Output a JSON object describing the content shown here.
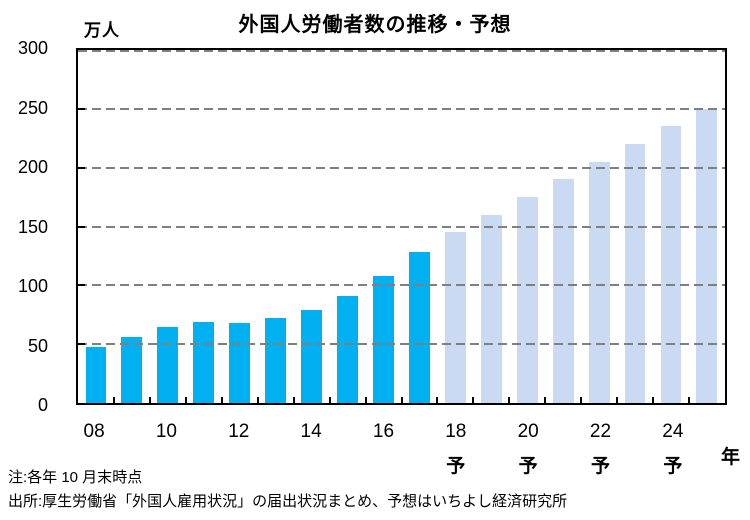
{
  "title": "外国人労働者数の推移・予想",
  "unit_label": "万人",
  "year_axis_label": "年",
  "notes": {
    "asof": "注:各年 10 月末時点",
    "source": "出所:厚生労働省「外国人雇用状況」の届出状況まとめ、予想はいちよし経済研究所"
  },
  "colors": {
    "actual_bar": "#00B0F0",
    "forecast_bar": "#C9DAF2",
    "gridline": "#7f7f7f"
  },
  "chart_data": {
    "type": "bar",
    "title": "外国人労働者数の推移・予想",
    "ylabel": "万人",
    "xlabel": "年",
    "ylim": [
      0,
      300
    ],
    "ytick_interval": 50,
    "ytick_labels": [
      "0",
      "50",
      "100",
      "150",
      "200",
      "250",
      "300"
    ],
    "grid": "horizontal-dashed",
    "legend": "none",
    "forecast_mark": "予",
    "bars": [
      {
        "year": "2008",
        "label": "08",
        "value": 48,
        "forecast": false
      },
      {
        "year": "2009",
        "label": "",
        "value": 56,
        "forecast": false
      },
      {
        "year": "2010",
        "label": "10",
        "value": 65,
        "forecast": false
      },
      {
        "year": "2011",
        "label": "",
        "value": 69,
        "forecast": false
      },
      {
        "year": "2012",
        "label": "12",
        "value": 68,
        "forecast": false
      },
      {
        "year": "2013",
        "label": "",
        "value": 72,
        "forecast": false
      },
      {
        "year": "2014",
        "label": "14",
        "value": 79,
        "forecast": false
      },
      {
        "year": "2015",
        "label": "",
        "value": 91,
        "forecast": false
      },
      {
        "year": "2016",
        "label": "16",
        "value": 108,
        "forecast": false
      },
      {
        "year": "2017",
        "label": "",
        "value": 128,
        "forecast": false
      },
      {
        "year": "2018",
        "label": "18",
        "value": 145,
        "forecast": true,
        "mark": "予"
      },
      {
        "year": "2019",
        "label": "",
        "value": 160,
        "forecast": true
      },
      {
        "year": "2020",
        "label": "20",
        "value": 175,
        "forecast": true,
        "mark": "予"
      },
      {
        "year": "2021",
        "label": "",
        "value": 190,
        "forecast": true
      },
      {
        "year": "2022",
        "label": "22",
        "value": 205,
        "forecast": true,
        "mark": "予"
      },
      {
        "year": "2023",
        "label": "",
        "value": 220,
        "forecast": true
      },
      {
        "year": "2024",
        "label": "24",
        "value": 235,
        "forecast": true,
        "mark": "予"
      },
      {
        "year": "2025",
        "label": "",
        "value": 250,
        "forecast": true
      }
    ]
  }
}
